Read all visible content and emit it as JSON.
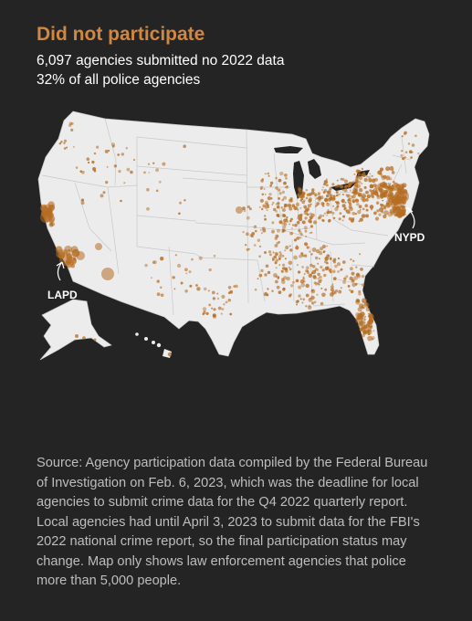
{
  "header": {
    "title": "Did not participate",
    "subtitle_line1": "6,097 agencies submitted no 2022 data",
    "subtitle_line2": "32% of all police agencies"
  },
  "map": {
    "callouts": {
      "nypd": "NYPD",
      "lapd": "LAPD"
    },
    "colors": {
      "land": "#ececec",
      "borders": "#c8c8c8",
      "dots": "#b66d22",
      "background": "#242424"
    }
  },
  "footer": {
    "source": "Source: Agency participation data compiled by the Federal Bureau of Investigation on Feb. 6, 2023, which was the deadline for local agencies to submit crime data for the Q4 2022 quarterly report. Local agencies had until April 3, 2023 to submit data for the FBI's 2022 national crime report, so the final participation status may change. Map only shows law enforcement agencies that police more than 5,000 people."
  }
}
